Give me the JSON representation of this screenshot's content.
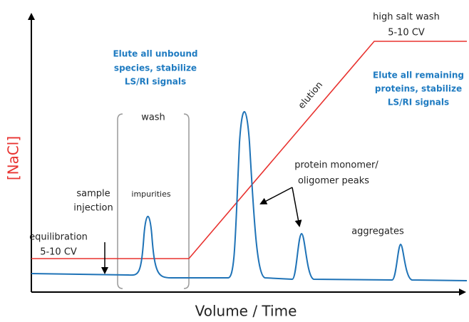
{
  "axes": {
    "y_label": "[NaCl]",
    "x_label": "Volume / Time"
  },
  "annotations": {
    "high_salt_wash": [
      "high salt wash",
      "5-10 CV"
    ],
    "elute_unbound": [
      "Elute all unbound",
      "species, stabilize",
      "LS/RI signals"
    ],
    "elute_remaining": [
      "Elute all remaining",
      "proteins, stabilize",
      "LS/RI signals"
    ],
    "elution": "elution",
    "wash": "wash",
    "protein_peaks": [
      "protein monomer/",
      "oligomer peaks"
    ],
    "sample_injection": [
      "sample",
      "injection"
    ],
    "impurities": "impurities",
    "equilibration": [
      "equilibration",
      "5-10 CV"
    ],
    "aggregates": "aggregates"
  }
}
